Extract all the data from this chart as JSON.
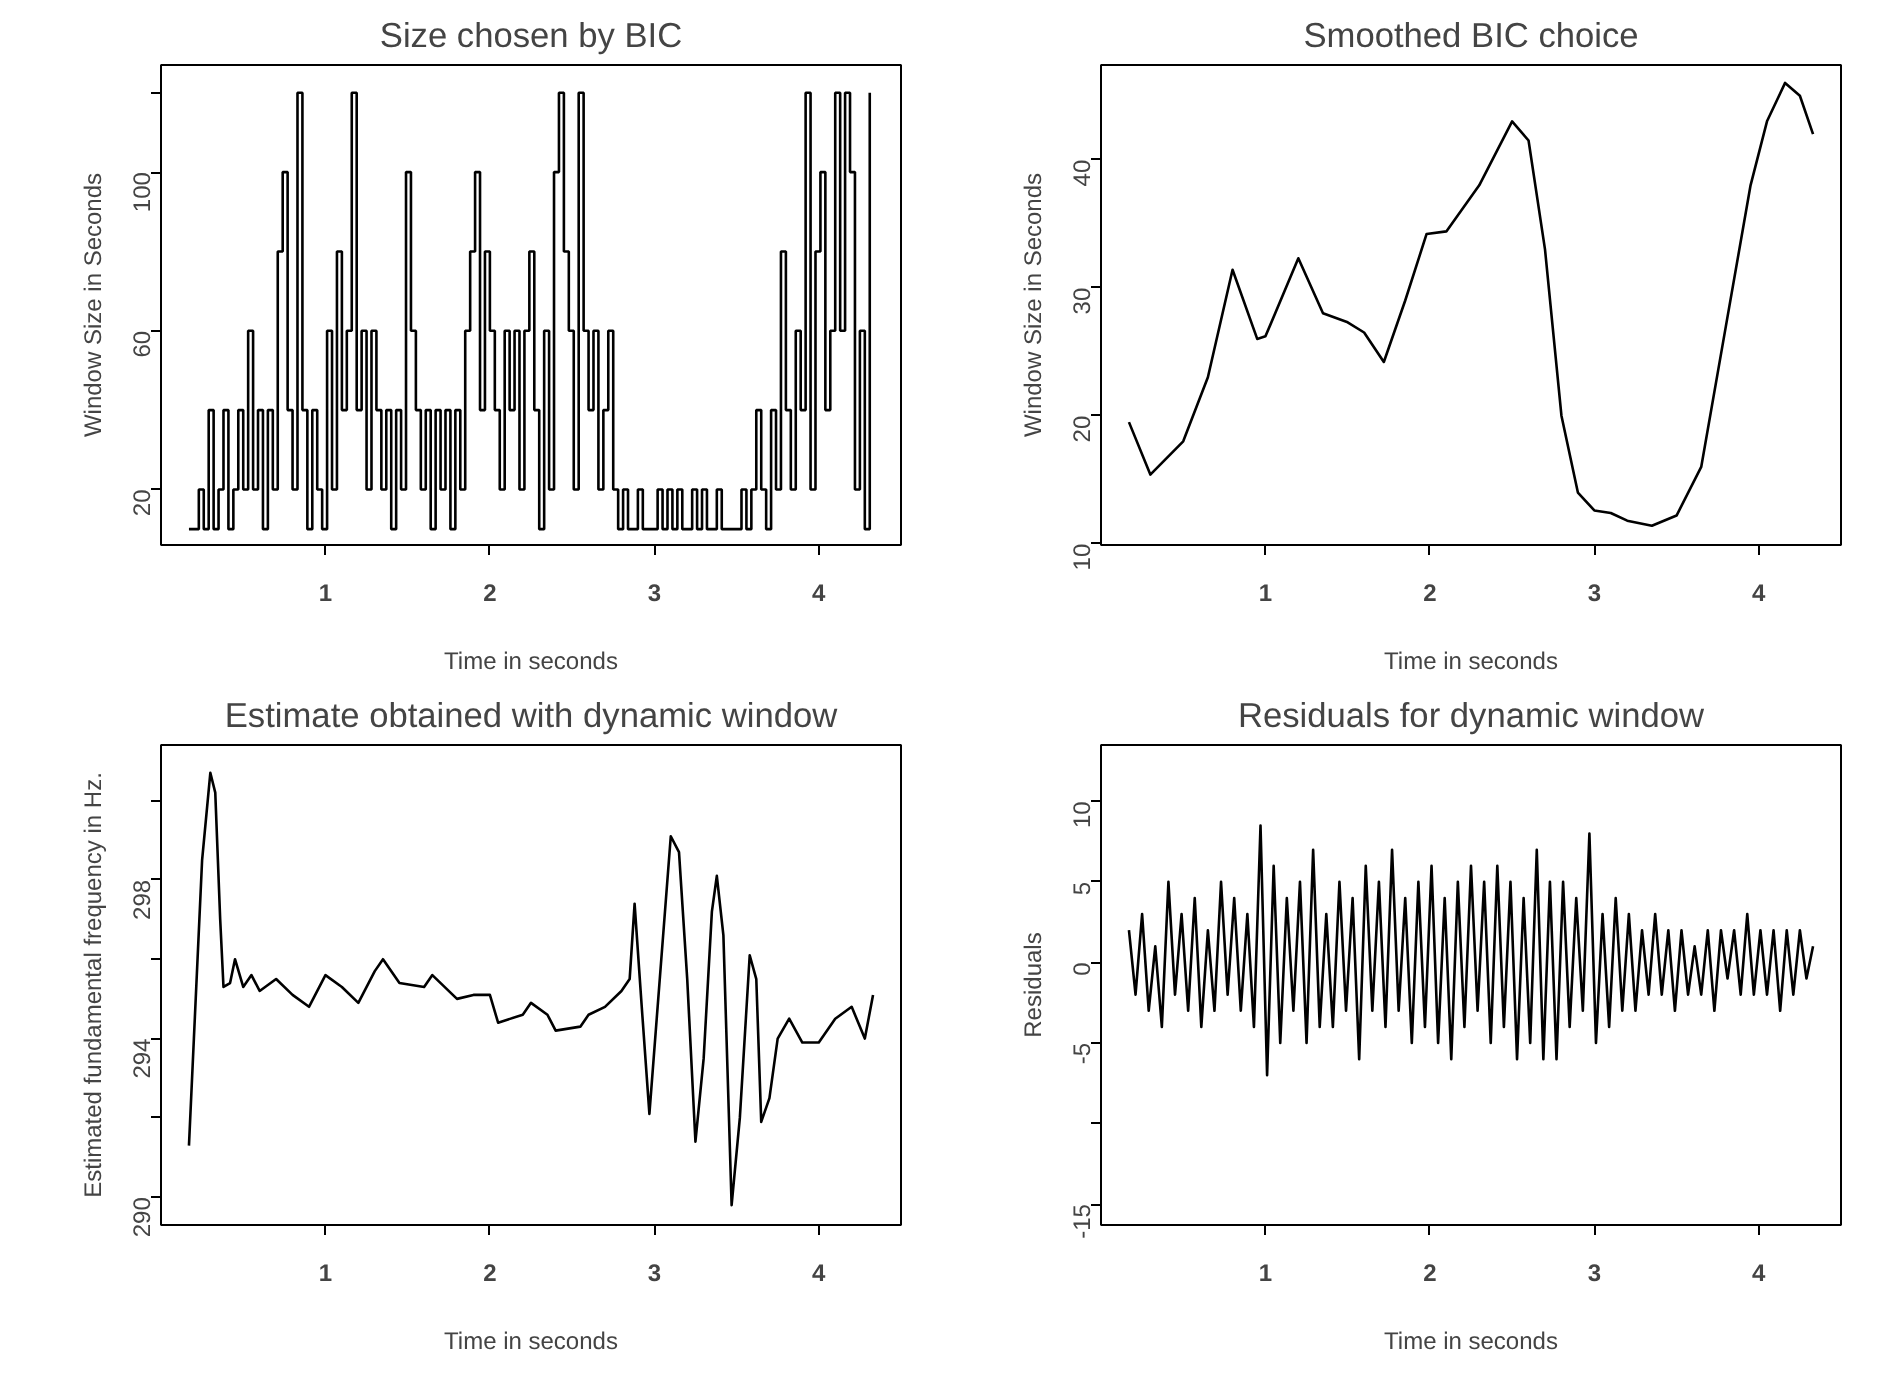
{
  "chart_data": [
    {
      "type": "step",
      "title": "Size chosen by BIC",
      "xlabel": "Time in seconds",
      "ylabel": "Window Size in Seconds",
      "grid": false,
      "color": "#000000",
      "xlim": [
        0.0,
        4.5
      ],
      "xticks": [
        1,
        2,
        3,
        4
      ],
      "ylim": [
        6,
        127
      ],
      "yticks": [
        20,
        60,
        100,
        {
          "value": 120,
          "label": null
        }
      ],
      "x": [
        0.17,
        0.2,
        0.23,
        0.26,
        0.29,
        0.32,
        0.35,
        0.38,
        0.41,
        0.44,
        0.47,
        0.5,
        0.53,
        0.56,
        0.59,
        0.62,
        0.65,
        0.68,
        0.71,
        0.74,
        0.77,
        0.8,
        0.83,
        0.86,
        0.89,
        0.92,
        0.95,
        0.98,
        1.01,
        1.04,
        1.07,
        1.1,
        1.13,
        1.16,
        1.19,
        1.22,
        1.25,
        1.28,
        1.31,
        1.34,
        1.37,
        1.4,
        1.43,
        1.46,
        1.49,
        1.52,
        1.55,
        1.58,
        1.61,
        1.64,
        1.67,
        1.7,
        1.73,
        1.76,
        1.79,
        1.82,
        1.85,
        1.88,
        1.91,
        1.94,
        1.97,
        2.0,
        2.03,
        2.06,
        2.09,
        2.12,
        2.15,
        2.18,
        2.21,
        2.24,
        2.27,
        2.3,
        2.33,
        2.36,
        2.39,
        2.42,
        2.45,
        2.48,
        2.51,
        2.54,
        2.57,
        2.6,
        2.63,
        2.66,
        2.69,
        2.72,
        2.75,
        2.78,
        2.81,
        2.84,
        2.87,
        2.9,
        2.93,
        2.96,
        2.99,
        3.02,
        3.05,
        3.08,
        3.11,
        3.14,
        3.17,
        3.2,
        3.23,
        3.26,
        3.29,
        3.32,
        3.35,
        3.38,
        3.41,
        3.44,
        3.47,
        3.5,
        3.53,
        3.56,
        3.59,
        3.62,
        3.65,
        3.68,
        3.71,
        3.74,
        3.77,
        3.8,
        3.83,
        3.86,
        3.89,
        3.92,
        3.95,
        3.98,
        4.01,
        4.04,
        4.07,
        4.1,
        4.13,
        4.16,
        4.19,
        4.22,
        4.25,
        4.28,
        4.31
      ],
      "values": [
        10,
        10,
        20,
        10,
        40,
        10,
        20,
        40,
        10,
        20,
        40,
        20,
        60,
        20,
        40,
        10,
        40,
        20,
        80,
        100,
        40,
        20,
        120,
        40,
        10,
        40,
        20,
        10,
        60,
        20,
        80,
        40,
        60,
        120,
        40,
        60,
        20,
        60,
        40,
        20,
        40,
        10,
        40,
        20,
        100,
        60,
        40,
        20,
        40,
        10,
        40,
        20,
        40,
        10,
        40,
        20,
        60,
        80,
        100,
        40,
        80,
        60,
        40,
        20,
        60,
        40,
        60,
        20,
        60,
        80,
        40,
        10,
        60,
        20,
        100,
        120,
        80,
        60,
        20,
        120,
        60,
        40,
        60,
        20,
        40,
        60,
        20,
        10,
        20,
        10,
        10,
        20,
        10,
        10,
        10,
        20,
        10,
        20,
        10,
        20,
        10,
        10,
        20,
        10,
        20,
        10,
        10,
        20,
        10,
        10,
        10,
        10,
        20,
        10,
        20,
        40,
        20,
        10,
        40,
        20,
        80,
        40,
        20,
        60,
        40,
        120,
        20,
        80,
        100,
        40,
        60,
        120,
        60,
        120,
        100,
        20,
        60,
        10,
        120
      ]
    },
    {
      "type": "line",
      "title": "Smoothed BIC choice",
      "xlabel": "Time in seconds",
      "ylabel": "Window Size in Seconds",
      "grid": false,
      "color": "#000000",
      "xlim": [
        0.0,
        4.5
      ],
      "xticks": [
        1,
        2,
        3,
        4
      ],
      "ylim": [
        9.9,
        47.4
      ],
      "yticks": [
        10,
        20,
        30,
        40
      ],
      "x": [
        0.17,
        0.3,
        0.5,
        0.65,
        0.8,
        0.95,
        1.0,
        1.2,
        1.35,
        1.5,
        1.6,
        1.72,
        1.85,
        1.98,
        2.1,
        2.3,
        2.5,
        2.6,
        2.7,
        2.8,
        2.9,
        3.0,
        3.1,
        3.2,
        3.35,
        3.5,
        3.65,
        3.8,
        3.95,
        4.05,
        4.16,
        4.25,
        4.33
      ],
      "values": [
        19.5,
        15.4,
        18,
        23,
        31.4,
        26,
        26.2,
        32.3,
        28,
        27.3,
        26.5,
        24.2,
        29,
        34.2,
        34.4,
        38,
        43,
        41.5,
        33,
        20,
        14,
        12.6,
        12.4,
        11.8,
        11.4,
        12.2,
        16,
        27,
        38,
        43,
        46,
        45,
        42
      ]
    },
    {
      "type": "line",
      "title": "Estimate obtained with dynamic window",
      "xlabel": "Time in seconds",
      "ylabel": "Estimated fundamental frequency in Hz.",
      "grid": false,
      "color": "#000000",
      "xlim": [
        0.0,
        4.5
      ],
      "xticks": [
        1,
        2,
        3,
        4
      ],
      "ylim": [
        289.3,
        301.4
      ],
      "yticks": [
        290,
        {
          "value": 292,
          "label": null
        },
        294,
        {
          "value": 296,
          "label": null
        },
        298,
        {
          "value": 300,
          "label": null
        }
      ],
      "x": [
        0.17,
        0.2,
        0.25,
        0.3,
        0.33,
        0.36,
        0.38,
        0.42,
        0.45,
        0.5,
        0.55,
        0.6,
        0.7,
        0.8,
        0.9,
        1.0,
        1.1,
        1.2,
        1.3,
        1.35,
        1.45,
        1.6,
        1.65,
        1.8,
        1.9,
        2.0,
        2.05,
        2.2,
        2.25,
        2.35,
        2.4,
        2.55,
        2.6,
        2.7,
        2.8,
        2.85,
        2.88,
        2.92,
        2.97,
        3.02,
        3.1,
        3.15,
        3.2,
        3.25,
        3.3,
        3.35,
        3.38,
        3.42,
        3.47,
        3.52,
        3.58,
        3.62,
        3.65,
        3.7,
        3.75,
        3.82,
        3.9,
        4.0,
        4.1,
        4.2,
        4.28,
        4.33
      ],
      "values": [
        291.3,
        294,
        298.5,
        300.7,
        300.2,
        297,
        295.3,
        295.4,
        296,
        295.3,
        295.6,
        295.2,
        295.5,
        295.1,
        294.8,
        295.6,
        295.3,
        294.9,
        295.7,
        296,
        295.4,
        295.3,
        295.6,
        295,
        295.1,
        295.1,
        294.4,
        294.6,
        294.9,
        294.6,
        294.2,
        294.3,
        294.6,
        294.8,
        295.2,
        295.5,
        297.4,
        295,
        292.1,
        294.8,
        299.1,
        298.7,
        295.5,
        291.4,
        293.5,
        297.2,
        298.1,
        296.6,
        289.8,
        292,
        296.1,
        295.5,
        291.9,
        292.5,
        294,
        294.5,
        293.9,
        293.9,
        294.5,
        294.8,
        294,
        295.1
      ]
    },
    {
      "type": "line",
      "title": "Residuals for dynamic window",
      "xlabel": "Time in seconds",
      "ylabel": "Residuals",
      "grid": false,
      "color": "#000000",
      "xlim": [
        0.0,
        4.5
      ],
      "xticks": [
        1,
        2,
        3,
        4
      ],
      "ylim": [
        -16.3,
        13.5
      ],
      "yticks": [
        -15,
        {
          "value": -10,
          "label": null
        },
        -5,
        0,
        5,
        10
      ],
      "x": [
        0.17,
        0.21,
        0.25,
        0.29,
        0.33,
        0.37,
        0.41,
        0.45,
        0.49,
        0.53,
        0.57,
        0.61,
        0.65,
        0.69,
        0.73,
        0.77,
        0.81,
        0.85,
        0.89,
        0.93,
        0.97,
        1.01,
        1.05,
        1.09,
        1.13,
        1.17,
        1.21,
        1.25,
        1.29,
        1.33,
        1.37,
        1.41,
        1.45,
        1.49,
        1.53,
        1.57,
        1.61,
        1.65,
        1.69,
        1.73,
        1.77,
        1.81,
        1.85,
        1.89,
        1.93,
        1.97,
        2.01,
        2.05,
        2.09,
        2.13,
        2.17,
        2.21,
        2.25,
        2.29,
        2.33,
        2.37,
        2.41,
        2.45,
        2.49,
        2.53,
        2.57,
        2.61,
        2.65,
        2.69,
        2.73,
        2.77,
        2.81,
        2.85,
        2.89,
        2.93,
        2.97,
        3.01,
        3.05,
        3.09,
        3.13,
        3.17,
        3.21,
        3.25,
        3.29,
        3.33,
        3.37,
        3.41,
        3.45,
        3.49,
        3.53,
        3.57,
        3.61,
        3.65,
        3.69,
        3.73,
        3.77,
        3.81,
        3.85,
        3.89,
        3.93,
        3.97,
        4.01,
        4.05,
        4.09,
        4.13,
        4.17,
        4.21,
        4.25,
        4.29,
        4.33
      ],
      "values": [
        2,
        -2,
        3,
        -3,
        1,
        -4,
        5,
        -2,
        3,
        -3,
        4,
        -4,
        2,
        -3,
        5,
        -2,
        4,
        -3,
        3,
        -4,
        8.5,
        -7,
        6,
        -5,
        4,
        -3,
        5,
        -5,
        7,
        -4,
        3,
        -4,
        5,
        -3,
        4,
        -6,
        6,
        -3,
        5,
        -4,
        7,
        -3,
        4,
        -5,
        5,
        -4,
        6,
        -5,
        4,
        -6,
        5,
        -4,
        6,
        -3,
        5,
        -5,
        6,
        -4,
        5,
        -6,
        4,
        -5,
        7,
        -6,
        5,
        -6,
        5,
        -4,
        4,
        -3,
        8,
        -5,
        3,
        -4,
        4,
        -3,
        3,
        -3,
        2,
        -2,
        3,
        -2,
        2,
        -3,
        2,
        -2,
        1,
        -2,
        2,
        -3,
        2,
        -1,
        2,
        -2,
        3,
        -2,
        2,
        -2,
        2,
        -3,
        2,
        -2,
        2,
        -1,
        1
      ]
    }
  ]
}
